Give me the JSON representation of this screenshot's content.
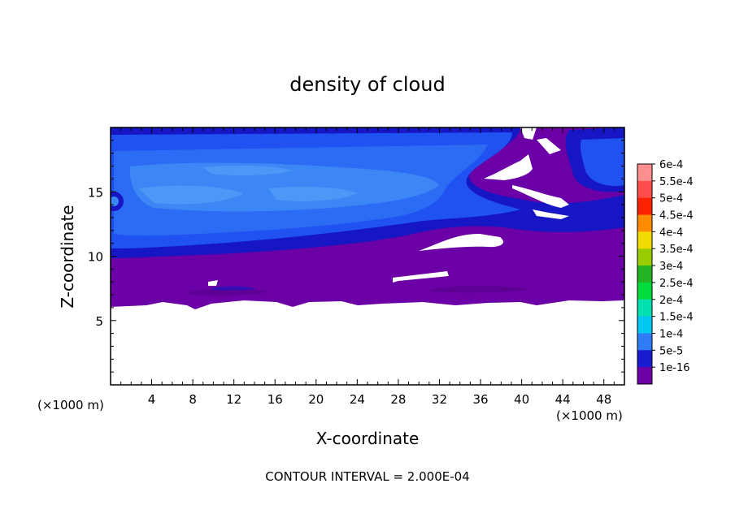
{
  "chart_data": {
    "type": "heatmap",
    "title": "density of cloud",
    "xlabel": "X-coordinate",
    "ylabel": "Z-coordinate",
    "x_unit_left": "(×1000 m)",
    "x_unit_right": "(×1000 m)",
    "footer": "CONTOUR INTERVAL = 2.000E-04",
    "xlim": [
      0,
      50
    ],
    "ylim": [
      0,
      20
    ],
    "xticks": [
      "4",
      "8",
      "12",
      "16",
      "20",
      "24",
      "28",
      "32",
      "36",
      "40",
      "44",
      "48"
    ],
    "yticks": [
      "5",
      "10",
      "15"
    ],
    "xtick_values": [
      4,
      8,
      12,
      16,
      20,
      24,
      28,
      32,
      36,
      40,
      44,
      48
    ],
    "ytick_values": [
      5,
      10,
      15
    ],
    "colorbar": {
      "labels": [
        "6e-4",
        "5.5e-4",
        "5e-4",
        "4.5e-4",
        "4e-4",
        "3.5e-4",
        "3e-4",
        "2.5e-4",
        "2e-4",
        "1.5e-4",
        "1e-4",
        "5e-5",
        "1e-16"
      ],
      "colors": [
        "#ff8f8f",
        "#ff4d4d",
        "#ff2200",
        "#ff8c00",
        "#f2dc00",
        "#9acd00",
        "#22b422",
        "#00dc3c",
        "#00e0b0",
        "#00c8f0",
        "#2f7cf5",
        "#1a1acf",
        "#6e00a8"
      ]
    },
    "colors": {
      "purple": "#6a00a6",
      "dark_blue": "#1414c8",
      "blue": "#1e50f0",
      "mid_blue": "#2e6ef5",
      "light_blue": "#3d8cf5",
      "cyan_blue": "#56a6f8"
    }
  }
}
